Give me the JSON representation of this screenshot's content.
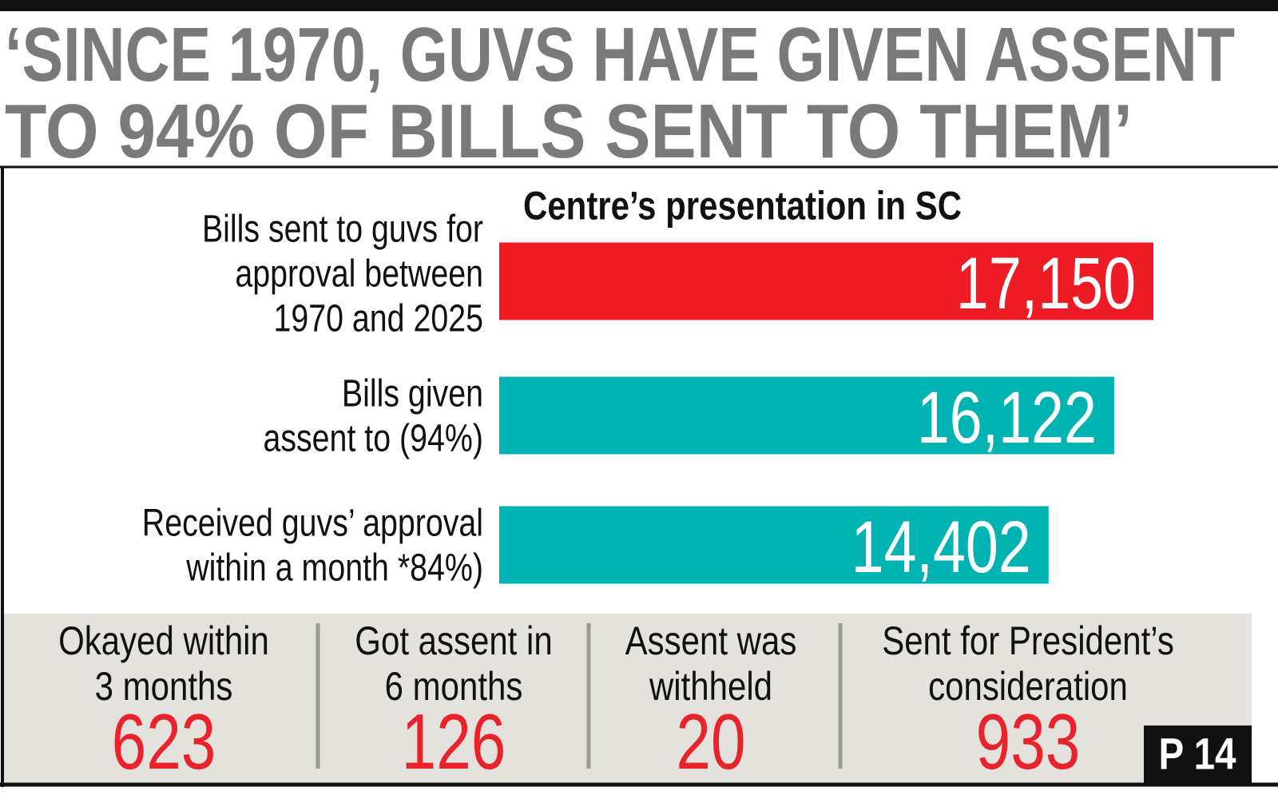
{
  "header": {
    "title": "‘SINCE 1970, GUVS HAVE GIVEN ASSENT\nTO 94% OF BILLS SENT TO THEM’"
  },
  "chart_data": {
    "type": "bar",
    "orientation": "horizontal",
    "title": "Centre’s presentation in SC",
    "categories": [
      "Bills sent to guvs for\napproval between\n1970 and 2025",
      "Bills given\nassent to (94%)",
      "Received guvs’ approval\nwithin a month *84%)"
    ],
    "values": [
      17150,
      16122,
      14402
    ],
    "value_labels": [
      "17,150",
      "16,122",
      "14,402"
    ],
    "colors": [
      "#ed1c24",
      "#00b3b3",
      "#00b3b3"
    ]
  },
  "stats": [
    {
      "label": "Okayed within\n3 months",
      "value": 623
    },
    {
      "label": "Got assent in\n6 months",
      "value": 126
    },
    {
      "label": "Assent was\nwithheld",
      "value": 20
    },
    {
      "label": "Sent for President’s\nconsideration",
      "value": 933
    }
  ],
  "page_ref": "P 14"
}
